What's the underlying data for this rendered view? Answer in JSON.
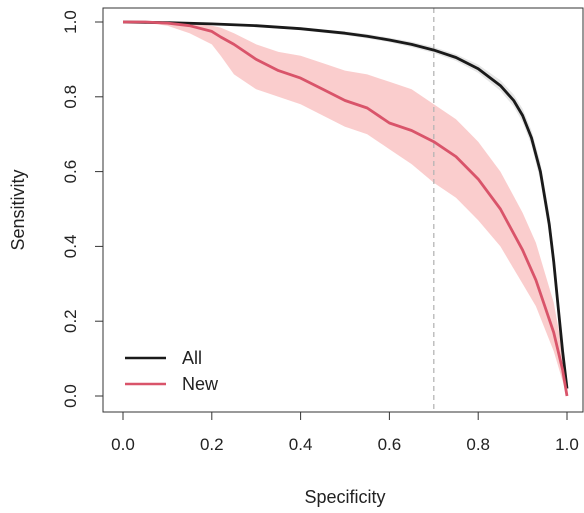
{
  "chart_data": {
    "type": "line",
    "title": "",
    "xlabel": "Specificity",
    "ylabel": "Sensitivity",
    "xlim": [
      0,
      1
    ],
    "ylim": [
      0,
      1
    ],
    "x_ticks": [
      "0.0",
      "0.2",
      "0.4",
      "0.6",
      "0.8",
      "1.0"
    ],
    "y_ticks": [
      "0.0",
      "0.2",
      "0.4",
      "0.6",
      "0.8",
      "1.0"
    ],
    "x_tick_values": [
      0,
      0.2,
      0.4,
      0.6,
      0.8,
      1.0
    ],
    "y_tick_values": [
      0,
      0.2,
      0.4,
      0.6,
      0.8,
      1.0
    ],
    "grid": false,
    "legend_position": "bottom-left",
    "reference_line": {
      "x": 0.7,
      "style": "dashed",
      "color": "#b5b5b5"
    },
    "series": [
      {
        "name": "All",
        "color": "#1a1a1a",
        "band_color": "#e3e3e3",
        "x": [
          0,
          0.1,
          0.2,
          0.3,
          0.4,
          0.5,
          0.55,
          0.6,
          0.65,
          0.7,
          0.75,
          0.8,
          0.85,
          0.88,
          0.9,
          0.92,
          0.94,
          0.96,
          0.97,
          0.98,
          0.99,
          1.0
        ],
        "y": [
          1.0,
          0.998,
          0.995,
          0.99,
          0.982,
          0.97,
          0.962,
          0.952,
          0.94,
          0.925,
          0.905,
          0.875,
          0.83,
          0.79,
          0.75,
          0.69,
          0.6,
          0.46,
          0.36,
          0.24,
          0.12,
          0.02
        ],
        "band_upper": [
          1.0,
          0.999,
          0.997,
          0.993,
          0.986,
          0.975,
          0.968,
          0.958,
          0.947,
          0.933,
          0.914,
          0.886,
          0.844,
          0.806,
          0.768,
          0.71,
          0.625,
          0.49,
          0.39,
          0.27,
          0.14,
          0.03
        ],
        "band_lower": [
          1.0,
          0.997,
          0.993,
          0.987,
          0.978,
          0.965,
          0.956,
          0.946,
          0.933,
          0.917,
          0.896,
          0.864,
          0.816,
          0.774,
          0.732,
          0.67,
          0.575,
          0.43,
          0.33,
          0.21,
          0.1,
          0.01
        ]
      },
      {
        "name": "New",
        "color": "#d9546a",
        "band_color": "#f9c4c4",
        "x": [
          0,
          0.05,
          0.1,
          0.15,
          0.2,
          0.22,
          0.25,
          0.3,
          0.35,
          0.4,
          0.45,
          0.5,
          0.55,
          0.6,
          0.65,
          0.7,
          0.75,
          0.8,
          0.85,
          0.9,
          0.93,
          0.95,
          0.97,
          0.99,
          1.0
        ],
        "y": [
          1.0,
          1.0,
          0.997,
          0.99,
          0.975,
          0.96,
          0.94,
          0.9,
          0.87,
          0.85,
          0.82,
          0.79,
          0.77,
          0.73,
          0.71,
          0.68,
          0.64,
          0.58,
          0.5,
          0.39,
          0.31,
          0.24,
          0.17,
          0.07,
          0.0
        ],
        "band_upper": [
          1.0,
          1.0,
          1.0,
          0.998,
          0.99,
          0.985,
          0.97,
          0.94,
          0.92,
          0.91,
          0.89,
          0.87,
          0.86,
          0.84,
          0.82,
          0.78,
          0.74,
          0.68,
          0.6,
          0.49,
          0.41,
          0.33,
          0.25,
          0.12,
          0.02
        ],
        "band_lower": [
          1.0,
          0.998,
          0.99,
          0.97,
          0.94,
          0.91,
          0.86,
          0.82,
          0.8,
          0.78,
          0.75,
          0.72,
          0.7,
          0.66,
          0.62,
          0.57,
          0.53,
          0.47,
          0.4,
          0.3,
          0.24,
          0.18,
          0.12,
          0.04,
          0.0
        ]
      }
    ]
  }
}
